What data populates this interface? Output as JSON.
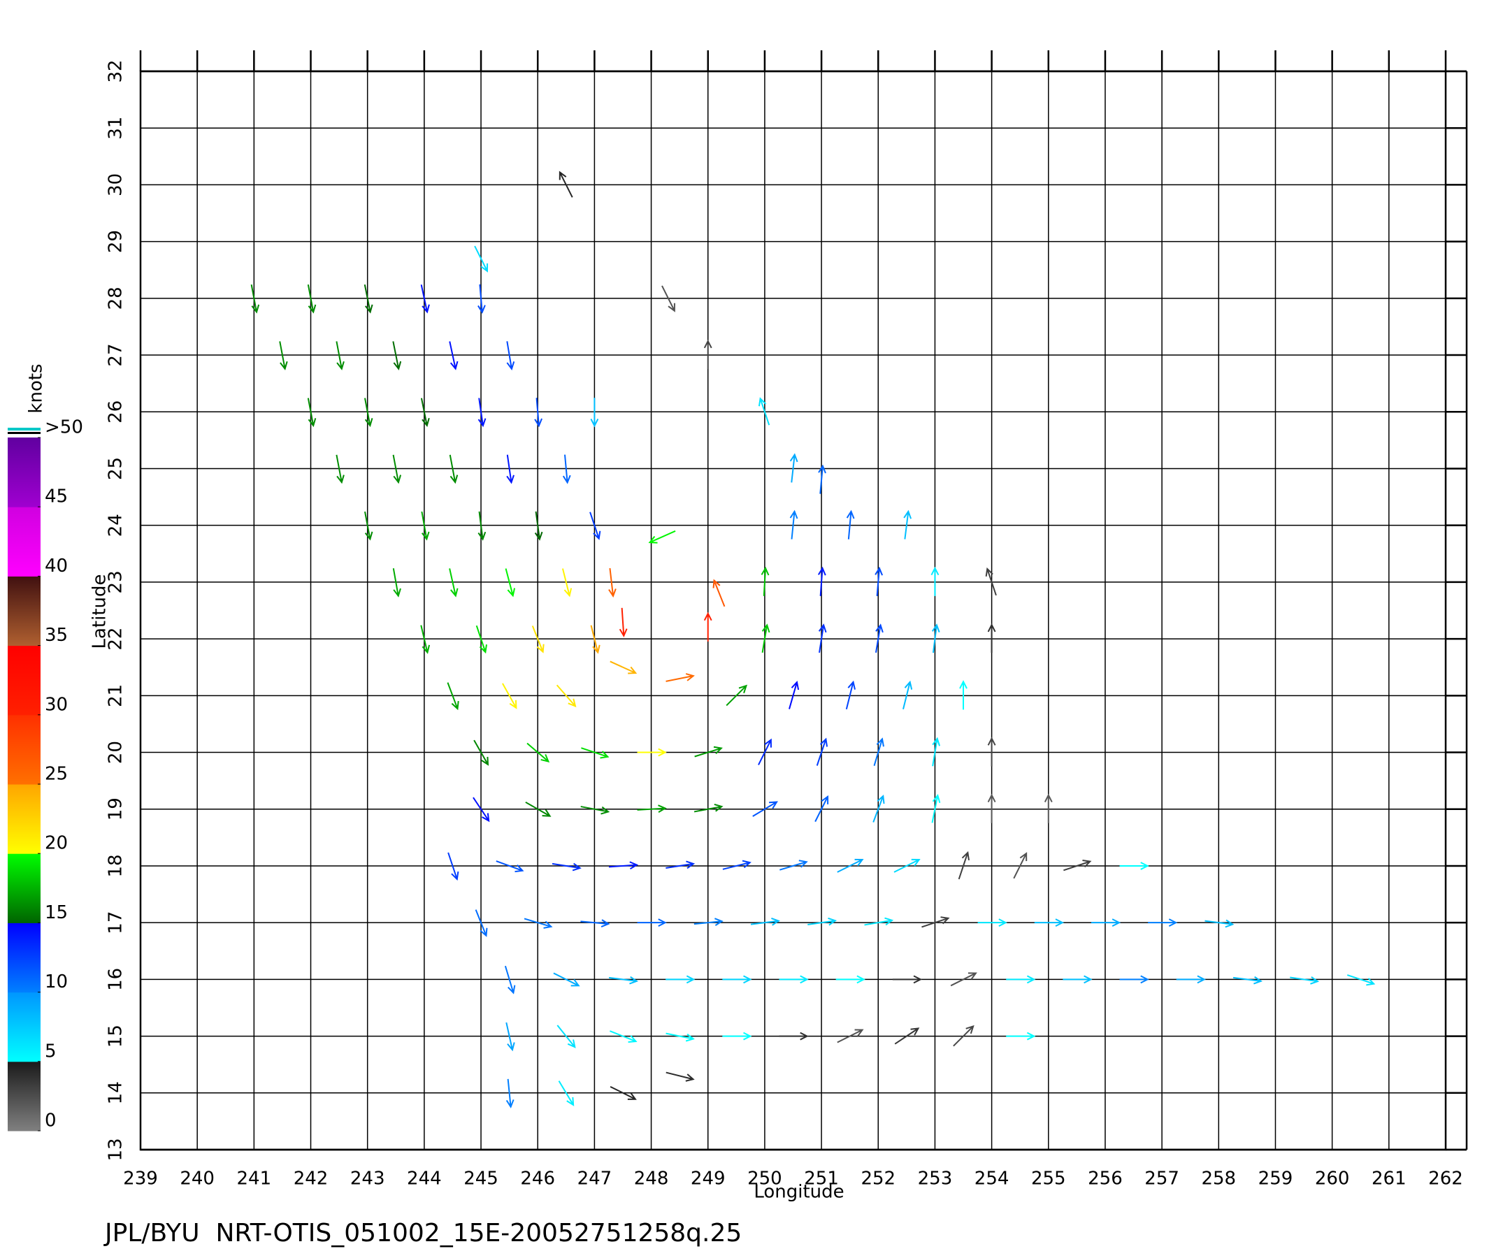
{
  "chart_data": {
    "type": "quiver",
    "x_label": "Longitude",
    "y_label": "Latitude",
    "footer": "JPL/BYU  NRT-OTIS_051002_15E-20052751258q.25",
    "xlim": [
      239,
      262
    ],
    "xticks": [
      239,
      240,
      241,
      242,
      243,
      244,
      245,
      246,
      247,
      248,
      249,
      250,
      251,
      252,
      253,
      254,
      255,
      256,
      257,
      258,
      259,
      260,
      261,
      262
    ],
    "ylim": [
      13,
      32
    ],
    "yticks": [
      13,
      14,
      15,
      16,
      17,
      18,
      19,
      20,
      21,
      22,
      23,
      24,
      25,
      26,
      27,
      28,
      29,
      30,
      31,
      32
    ],
    "grid": true,
    "colorbar": {
      "title": "knots",
      "range": [
        0,
        50
      ],
      "ticks": [
        0,
        5,
        10,
        15,
        20,
        25,
        30,
        35,
        40,
        45,
        {
          "value": 50,
          "label": ">50"
        }
      ],
      "colors": [
        [
          "#808080",
          "#1a1a1a"
        ],
        [
          "#00ffff",
          "#0096ff"
        ],
        [
          "#0080ff",
          "#0000ff"
        ],
        [
          "#006400",
          "#00ff00"
        ],
        [
          "#ffff00",
          "#ffa500"
        ],
        [
          "#ff7000",
          "#ff3000"
        ],
        [
          "#ff2000",
          "#ff0000"
        ],
        [
          "#b06030",
          "#401010"
        ],
        [
          "#ff00ff",
          "#d000e0"
        ],
        [
          "#a000d0",
          "#6000a0"
        ]
      ]
    },
    "x": [
      241,
      242,
      243,
      244,
      245,
      241.5,
      242.5,
      243.5,
      244.5,
      245.5,
      249,
      242,
      243,
      244,
      245,
      246,
      247,
      250,
      242.5,
      243.5,
      244.5,
      245.5,
      246.5,
      250.5,
      251,
      243,
      244,
      245,
      246,
      247,
      248.2,
      250.5,
      251.5,
      252.5,
      243.5,
      244.5,
      245.5,
      246.5,
      247.3,
      249.2,
      250,
      251,
      252,
      253,
      254,
      244,
      245,
      246,
      247,
      247.5,
      249,
      250,
      251,
      252,
      253,
      254,
      244.5,
      245.5,
      246.5,
      247.5,
      248.5,
      249.5,
      250.5,
      251.5,
      252.5,
      253.5,
      245,
      246,
      247,
      248,
      249,
      250,
      251,
      252,
      253,
      254,
      245,
      246,
      247,
      248,
      249,
      250,
      251,
      252,
      253,
      254,
      255,
      244.5,
      245.5,
      246.5,
      247.5,
      248.5,
      249.5,
      250.5,
      251.5,
      252.5,
      253.5,
      254.5,
      255.5,
      256.5,
      245,
      246,
      247,
      248,
      249,
      250,
      251,
      252,
      253,
      254,
      255,
      256,
      257,
      258,
      245.5,
      246.5,
      247.5,
      248.5,
      249.5,
      250.5,
      251.5,
      252.5,
      253.5,
      254.5,
      255.5,
      256.5,
      257.5,
      258.5,
      259.5,
      260.5,
      245.5,
      246.5,
      247.5,
      248.5,
      249.5,
      250.5,
      251.5,
      252.5,
      253.5,
      254.5,
      245.5,
      246.5,
      247.5,
      248.5,
      246.5,
      245,
      248.3
    ],
    "y": [
      28,
      28,
      28,
      28,
      28,
      27,
      27,
      27,
      27,
      27,
      27,
      26,
      26,
      26,
      26,
      26,
      26,
      26,
      25,
      25,
      25,
      25,
      25,
      25,
      24.8,
      24,
      24,
      24,
      24,
      24,
      23.8,
      24,
      24,
      24,
      23,
      23,
      23,
      23,
      23,
      22.8,
      23,
      23,
      23,
      23,
      23,
      22,
      22,
      22,
      22,
      22.3,
      22.2,
      22,
      22,
      22,
      22,
      22,
      21,
      21,
      21,
      21.5,
      21.3,
      21,
      21,
      21,
      21,
      21,
      20,
      20,
      20,
      20,
      20,
      20,
      20,
      20,
      20,
      20,
      19,
      19,
      19,
      19,
      19,
      19,
      19,
      19,
      19,
      19,
      19,
      18,
      18,
      18,
      18,
      18,
      18,
      18,
      18,
      18,
      18,
      18,
      18,
      18,
      17,
      17,
      17,
      17,
      17,
      17,
      17,
      17,
      17,
      17,
      17,
      17,
      17,
      17,
      16,
      16,
      16,
      16,
      16,
      16,
      16,
      16,
      16,
      16,
      16,
      16,
      16,
      16,
      16,
      16,
      15,
      15,
      15,
      15,
      15,
      15,
      15,
      15,
      15,
      15,
      14,
      14,
      14,
      14.3,
      30,
      28.7,
      28
    ],
    "u": [
      3,
      3,
      3,
      3,
      1,
      3,
      3,
      3,
      3,
      2,
      0,
      3,
      3,
      3,
      2,
      1,
      0,
      -2,
      3,
      3,
      3,
      2,
      1,
      1,
      1,
      3,
      3,
      2,
      2,
      4,
      -18,
      1,
      1,
      1,
      3,
      4,
      5,
      5,
      3,
      -10,
      1,
      1,
      1,
      0,
      -1,
      4,
      6,
      8,
      6,
      2,
      0,
      3,
      2,
      2,
      1,
      0,
      6,
      10,
      14,
      22,
      25,
      12,
      4,
      3,
      2,
      0,
      8,
      14,
      18,
      20,
      16,
      6,
      4,
      3,
      1,
      0,
      8,
      14,
      16,
      17,
      16,
      10,
      5,
      3,
      1,
      0,
      0,
      4,
      11,
      13,
      14,
      13,
      12,
      10,
      8,
      6,
      1,
      1,
      3,
      5,
      4,
      10,
      11,
      11,
      10,
      8,
      7,
      6,
      3,
      6,
      8,
      9,
      10,
      8,
      3,
      8,
      8,
      7,
      7,
      6,
      5,
      4,
      2,
      6,
      8,
      10,
      9,
      8,
      7,
      6,
      2,
      4,
      5,
      5,
      5,
      4,
      2,
      3,
      2,
      5,
      1,
      3,
      4,
      4,
      -2,
      3,
      1
    ],
    "v": [
      -16,
      -16,
      -15,
      -14,
      -12,
      -16,
      -16,
      -15,
      -14,
      -12,
      3,
      -16,
      -16,
      -15,
      -14,
      -12,
      -8,
      6,
      -16,
      -16,
      -16,
      -14,
      -11,
      9,
      11,
      -16,
      -17,
      -16,
      -15,
      -12,
      -8,
      10,
      11,
      8,
      -17,
      -18,
      -19,
      -20,
      -26,
      25,
      18,
      14,
      12,
      6,
      3,
      -17,
      -18,
      -20,
      -24,
      -30,
      30,
      18,
      13,
      12,
      8,
      4,
      -16,
      -18,
      -16,
      -10,
      5,
      12,
      14,
      12,
      8,
      5,
      -14,
      -12,
      -6,
      0,
      5,
      12,
      12,
      10,
      6,
      3,
      -12,
      -8,
      -3,
      1,
      3,
      6,
      10,
      8,
      5,
      2,
      2,
      -12,
      -4,
      -2,
      1,
      2,
      3,
      3,
      4,
      3,
      3,
      2,
      1,
      0,
      -10,
      -3,
      -1,
      0,
      1,
      1,
      1,
      1,
      1,
      0,
      0,
      0,
      0,
      -1,
      -10,
      -4,
      -1,
      0,
      0,
      0,
      0,
      0,
      1,
      0,
      0,
      0,
      0,
      -1,
      -1,
      -2,
      -9,
      -5,
      -2,
      -1,
      0,
      0,
      1,
      2,
      2,
      0,
      -10,
      -5,
      -2,
      -1,
      4,
      -6,
      -2
    ]
  }
}
